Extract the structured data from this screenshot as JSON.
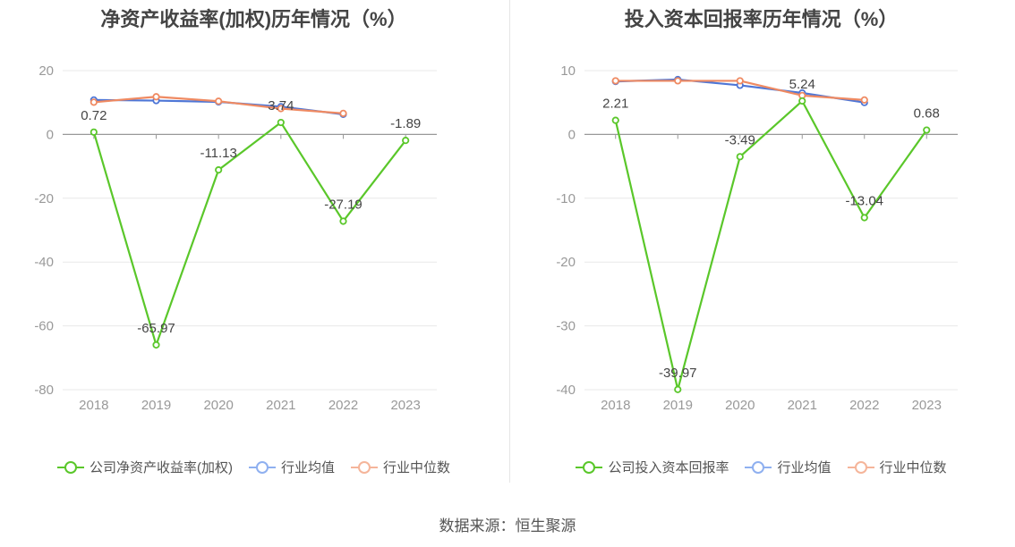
{
  "chart_data": [
    {
      "type": "line",
      "title": "净资产收益率(加权)历年情况（%）",
      "categories": [
        "2018",
        "2019",
        "2020",
        "2021",
        "2022",
        "2023"
      ],
      "ylim": [
        -80,
        20
      ],
      "yticks": [
        20,
        0,
        -20,
        -40,
        -60,
        -80
      ],
      "grid": true,
      "legend_position": "bottom",
      "series": [
        {
          "name": "公司净资产收益率(加权)",
          "color": "#5ac72a",
          "values": [
            0.72,
            -65.97,
            -11.13,
            3.74,
            -27.19,
            -1.89
          ],
          "labels": [
            "0.72",
            "-65.97",
            "-11.13",
            "3.74",
            "-27.19",
            "-1.89"
          ]
        },
        {
          "name": "行业均值",
          "color": "#4e76d6",
          "values": [
            10.8,
            10.6,
            10.2,
            8.7,
            6.3,
            null
          ]
        },
        {
          "name": "行业中位数",
          "color": "#ef8a62",
          "values": [
            10.1,
            11.8,
            10.4,
            8.1,
            6.6,
            null
          ]
        }
      ]
    },
    {
      "type": "line",
      "title": "投入资本回报率历年情况（%）",
      "categories": [
        "2018",
        "2019",
        "2020",
        "2021",
        "2022",
        "2023"
      ],
      "ylim": [
        -40,
        10
      ],
      "yticks": [
        10,
        0,
        -10,
        -20,
        -30,
        -40
      ],
      "grid": true,
      "legend_position": "bottom",
      "series": [
        {
          "name": "公司投入资本回报率",
          "color": "#5ac72a",
          "values": [
            2.21,
            -39.97,
            -3.49,
            5.24,
            -13.04,
            0.68
          ],
          "labels": [
            "2.21",
            "-39.97",
            "-3.49",
            "5.24",
            "-13.04",
            "0.68"
          ]
        },
        {
          "name": "行业均值",
          "color": "#4e76d6",
          "values": [
            8.3,
            8.6,
            7.7,
            6.5,
            5.0,
            null
          ]
        },
        {
          "name": "行业中位数",
          "color": "#ef8a62",
          "values": [
            8.4,
            8.4,
            8.4,
            6.1,
            5.4,
            null
          ]
        }
      ]
    }
  ],
  "legend_colors": {
    "company": "#5ac72a",
    "mean": "#8fb0f0",
    "median": "#f5b59a"
  },
  "source": "数据来源：恒生聚源"
}
